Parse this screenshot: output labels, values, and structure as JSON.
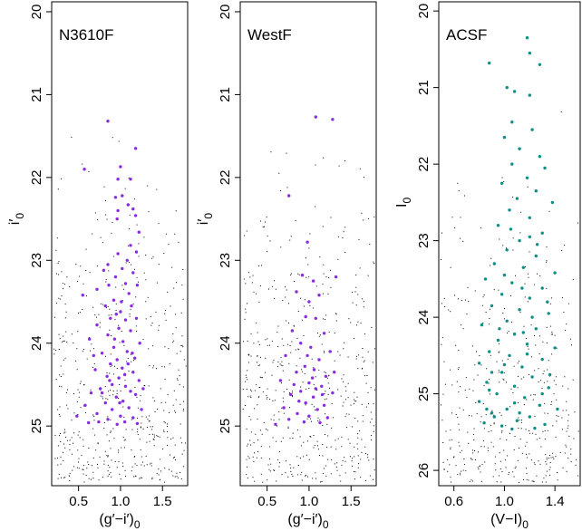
{
  "colors": {
    "purple": "#8a2be2",
    "teal": "#0e8f86",
    "black": "#000000"
  },
  "chart_data": [
    {
      "type": "scatter",
      "label": "N3610F",
      "xlabel": {
        "base": "(g′−i′)",
        "sub": "0"
      },
      "ylabel": {
        "base": "i′",
        "sub": "0"
      },
      "xlim": [
        0.18,
        1.8
      ],
      "ylim": [
        25.72,
        19.88
      ],
      "y_inverted": true,
      "xticks": [
        0.5,
        1.0,
        1.5
      ],
      "xtick_labels": [
        "0.5",
        "1.0",
        "1.5"
      ],
      "yticks": [
        20,
        21,
        22,
        23,
        24,
        25
      ],
      "ytick_labels": [
        "20",
        "21",
        "22",
        "23",
        "24",
        "25"
      ],
      "highlight_color": "#8a2be2",
      "highlight_points": [
        [
          0.85,
          21.32
        ],
        [
          0.57,
          21.9
        ],
        [
          1.0,
          21.87
        ],
        [
          1.18,
          21.65
        ],
        [
          0.97,
          22.02
        ],
        [
          1.12,
          22.02
        ],
        [
          0.94,
          22.24
        ],
        [
          1.02,
          22.22
        ],
        [
          1.09,
          22.33
        ],
        [
          0.97,
          22.4
        ],
        [
          1.15,
          22.38
        ],
        [
          1.18,
          22.46
        ],
        [
          0.96,
          22.5
        ],
        [
          1.22,
          22.66
        ],
        [
          1.12,
          22.82
        ],
        [
          1.19,
          22.9
        ],
        [
          0.97,
          22.92
        ],
        [
          1.08,
          23.0
        ],
        [
          0.85,
          23.05
        ],
        [
          0.8,
          23.12
        ],
        [
          1.02,
          23.1
        ],
        [
          1.15,
          23.15
        ],
        [
          0.94,
          23.2
        ],
        [
          0.86,
          23.3
        ],
        [
          1.06,
          23.28
        ],
        [
          0.72,
          23.35
        ],
        [
          1.2,
          23.3
        ],
        [
          0.55,
          23.42
        ],
        [
          1.1,
          23.4
        ],
        [
          0.92,
          23.48
        ],
        [
          1.01,
          23.5
        ],
        [
          0.82,
          23.55
        ],
        [
          1.13,
          23.55
        ],
        [
          0.95,
          23.65
        ],
        [
          0.88,
          23.7
        ],
        [
          1.06,
          23.72
        ],
        [
          1.19,
          23.7
        ],
        [
          0.72,
          23.78
        ],
        [
          0.98,
          23.82
        ],
        [
          1.12,
          23.85
        ],
        [
          0.85,
          23.9
        ],
        [
          0.63,
          23.95
        ],
        [
          1.03,
          23.98
        ],
        [
          1.23,
          24.0
        ],
        [
          0.92,
          24.05
        ],
        [
          1.08,
          24.1
        ],
        [
          0.78,
          24.12
        ],
        [
          0.96,
          24.2
        ],
        [
          1.17,
          24.18
        ],
        [
          0.88,
          24.25
        ],
        [
          1.02,
          24.3
        ],
        [
          0.7,
          24.32
        ],
        [
          1.15,
          24.35
        ],
        [
          0.84,
          24.4
        ],
        [
          0.98,
          24.42
        ],
        [
          1.22,
          24.45
        ],
        [
          0.9,
          24.5
        ],
        [
          1.06,
          24.52
        ],
        [
          0.76,
          24.55
        ],
        [
          1.12,
          24.58
        ],
        [
          0.65,
          24.6
        ],
        [
          0.95,
          24.65
        ],
        [
          1.18,
          24.62
        ],
        [
          1.03,
          24.7
        ],
        [
          0.82,
          24.72
        ],
        [
          0.58,
          24.75
        ],
        [
          1.1,
          24.78
        ],
        [
          0.9,
          24.8
        ],
        [
          1.25,
          24.8
        ],
        [
          0.72,
          24.85
        ],
        [
          1.0,
          24.88
        ],
        [
          1.15,
          24.9
        ],
        [
          0.85,
          24.92
        ],
        [
          1.05,
          24.95
        ],
        [
          0.62,
          24.96
        ],
        [
          0.96,
          24.98
        ],
        [
          1.2,
          24.97
        ],
        [
          0.78,
          24.6
        ],
        [
          1.09,
          24.25
        ],
        [
          0.93,
          23.95
        ],
        [
          1.0,
          23.62
        ],
        [
          0.68,
          24.15
        ],
        [
          1.27,
          24.55
        ],
        [
          0.87,
          24.45
        ],
        [
          0.48,
          24.88
        ],
        [
          1.05,
          24.38
        ],
        [
          0.99,
          24.72
        ],
        [
          1.14,
          24.12
        ],
        [
          0.74,
          24.95
        ]
      ],
      "field_points_note": "",
      "xlim_unit": ""
    },
    {
      "type": "scatter",
      "label": "WestF",
      "xlabel": {
        "base": "(g′−i′)",
        "sub": "0"
      },
      "ylabel": {
        "base": "i′",
        "sub": "0"
      },
      "xlim": [
        0.18,
        1.8
      ],
      "ylim": [
        25.72,
        19.88
      ],
      "y_inverted": true,
      "xticks": [
        0.5,
        1.0,
        1.5
      ],
      "xtick_labels": [
        "0.5",
        "1.0",
        "1.5"
      ],
      "yticks": [
        20,
        21,
        22,
        23,
        24,
        25
      ],
      "ytick_labels": [
        "20",
        "21",
        "22",
        "23",
        "24",
        "25"
      ],
      "highlight_color": "#8a2be2",
      "highlight_points": [
        [
          1.08,
          21.27
        ],
        [
          1.28,
          21.3
        ],
        [
          0.76,
          22.22
        ],
        [
          0.98,
          22.78
        ],
        [
          0.92,
          23.18
        ],
        [
          1.05,
          23.25
        ],
        [
          1.32,
          23.2
        ],
        [
          0.85,
          23.38
        ],
        [
          1.12,
          23.42
        ],
        [
          1.0,
          23.5
        ],
        [
          0.96,
          23.68
        ],
        [
          1.08,
          23.7
        ],
        [
          0.8,
          23.85
        ],
        [
          1.18,
          23.88
        ],
        [
          0.9,
          24.0
        ],
        [
          1.02,
          24.05
        ],
        [
          1.25,
          24.1
        ],
        [
          0.72,
          24.15
        ],
        [
          1.12,
          24.2
        ],
        [
          0.95,
          24.28
        ],
        [
          1.06,
          24.32
        ],
        [
          0.85,
          24.35
        ],
        [
          1.2,
          24.4
        ],
        [
          0.66,
          24.45
        ],
        [
          1.0,
          24.48
        ],
        [
          1.15,
          24.52
        ],
        [
          0.9,
          24.58
        ],
        [
          1.28,
          24.6
        ],
        [
          0.78,
          24.62
        ],
        [
          1.05,
          24.65
        ],
        [
          0.96,
          24.72
        ],
        [
          1.18,
          24.75
        ],
        [
          0.7,
          24.78
        ],
        [
          1.1,
          24.8
        ],
        [
          0.86,
          24.85
        ],
        [
          1.0,
          24.88
        ],
        [
          1.22,
          24.9
        ],
        [
          0.76,
          24.92
        ],
        [
          0.94,
          24.95
        ],
        [
          1.13,
          24.96
        ],
        [
          0.6,
          24.98
        ],
        [
          1.08,
          24.55
        ],
        [
          0.82,
          24.5
        ],
        [
          1.3,
          24.35
        ],
        [
          0.98,
          24.15
        ],
        [
          0.88,
          24.7
        ],
        [
          1.16,
          24.62
        ],
        [
          1.04,
          24.42
        ]
      ],
      "field_points_note": "",
      "xlim_unit": ""
    },
    {
      "type": "scatter",
      "label": "ACSF",
      "xlabel": {
        "base": "(V−I)",
        "sub": "0"
      },
      "ylabel": {
        "base": "I",
        "sub": "0"
      },
      "xlim": [
        0.48,
        1.6
      ],
      "ylim": [
        26.2,
        19.88
      ],
      "y_inverted": true,
      "xticks": [
        0.6,
        1.0,
        1.4
      ],
      "xtick_labels": [
        "0.6",
        "1.0",
        "1.4"
      ],
      "yticks": [
        20,
        21,
        22,
        23,
        24,
        25,
        26
      ],
      "ytick_labels": [
        "20",
        "21",
        "22",
        "23",
        "24",
        "25",
        "26"
      ],
      "highlight_color": "#0e8f86",
      "highlight_points": [
        [
          1.18,
          20.35
        ],
        [
          1.2,
          20.55
        ],
        [
          0.88,
          20.68
        ],
        [
          1.28,
          20.7
        ],
        [
          1.02,
          21.0
        ],
        [
          1.08,
          21.05
        ],
        [
          1.2,
          21.1
        ],
        [
          1.06,
          21.45
        ],
        [
          1.22,
          21.55
        ],
        [
          1.0,
          21.65
        ],
        [
          1.12,
          21.8
        ],
        [
          1.28,
          21.9
        ],
        [
          1.06,
          22.0
        ],
        [
          1.32,
          22.05
        ],
        [
          1.18,
          22.18
        ],
        [
          0.98,
          22.25
        ],
        [
          1.25,
          22.35
        ],
        [
          1.1,
          22.45
        ],
        [
          1.38,
          22.5
        ],
        [
          1.04,
          22.6
        ],
        [
          1.2,
          22.7
        ],
        [
          0.95,
          22.8
        ],
        [
          1.3,
          22.9
        ],
        [
          1.12,
          23.0
        ],
        [
          1.02,
          23.12
        ],
        [
          1.25,
          23.2
        ],
        [
          0.92,
          23.3
        ],
        [
          1.15,
          23.35
        ],
        [
          1.4,
          23.42
        ],
        [
          0.85,
          23.5
        ],
        [
          1.06,
          23.55
        ],
        [
          1.3,
          23.62
        ],
        [
          0.98,
          23.7
        ],
        [
          1.2,
          23.75
        ],
        [
          0.9,
          23.85
        ],
        [
          1.12,
          23.9
        ],
        [
          1.35,
          23.95
        ],
        [
          1.02,
          24.05
        ],
        [
          0.82,
          24.1
        ],
        [
          1.25,
          24.15
        ],
        [
          1.08,
          24.22
        ],
        [
          0.95,
          24.3
        ],
        [
          1.18,
          24.35
        ],
        [
          1.4,
          24.4
        ],
        [
          0.88,
          24.45
        ],
        [
          1.04,
          24.5
        ],
        [
          1.3,
          24.55
        ],
        [
          0.8,
          24.6
        ],
        [
          1.14,
          24.65
        ],
        [
          0.98,
          24.72
        ],
        [
          1.22,
          24.78
        ],
        [
          0.86,
          24.85
        ],
        [
          1.08,
          24.9
        ],
        [
          1.35,
          24.92
        ],
        [
          0.94,
          25.0
        ],
        [
          1.16,
          25.05
        ],
        [
          0.8,
          25.1
        ],
        [
          1.28,
          25.15
        ],
        [
          1.02,
          25.2
        ],
        [
          0.9,
          25.25
        ],
        [
          1.2,
          25.3
        ],
        [
          1.1,
          25.35
        ],
        [
          0.84,
          25.38
        ],
        [
          1.32,
          25.4
        ],
        [
          0.98,
          25.42
        ],
        [
          1.24,
          25.45
        ],
        [
          1.06,
          25.46
        ],
        [
          0.92,
          25.3
        ],
        [
          1.15,
          24.2
        ],
        [
          1.0,
          23.45
        ],
        [
          1.36,
          24.75
        ],
        [
          0.88,
          24.95
        ],
        [
          1.12,
          25.25
        ],
        [
          1.26,
          23.05
        ],
        [
          1.05,
          22.85
        ],
        [
          1.18,
          24.48
        ],
        [
          0.96,
          24.15
        ],
        [
          1.08,
          25.12
        ],
        [
          1.3,
          25.0
        ],
        [
          0.86,
          25.2
        ],
        [
          1.22,
          24.0
        ],
        [
          1.42,
          25.2
        ],
        [
          1.0,
          24.62
        ],
        [
          1.14,
          23.62
        ],
        [
          0.9,
          24.72
        ],
        [
          1.2,
          22.95
        ],
        [
          1.34,
          23.8
        ]
      ],
      "field_points_note": "",
      "xlim_unit": ""
    }
  ]
}
